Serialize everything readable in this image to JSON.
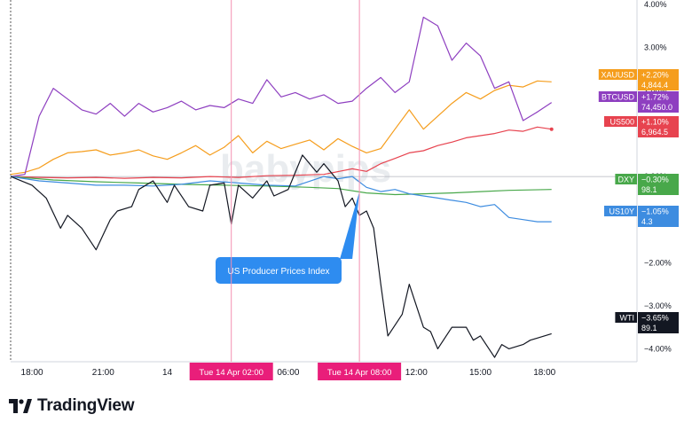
{
  "chart_data": {
    "type": "line",
    "x_ticks": [
      "18:00",
      "21:00",
      "14",
      "06:00",
      "12:00",
      "15:00",
      "18:00"
    ],
    "y_ticks": [
      "4.00%",
      "3.00%",
      "2.00%",
      "1.00%",
      "0.00%",
      "−1.00%",
      "−2.00%",
      "−3.00%",
      "−4.00%"
    ],
    "y_tick_values": [
      4,
      3,
      2,
      1,
      0,
      -1,
      -2,
      -3,
      -4
    ],
    "ylim": [
      -4.3,
      4.1
    ],
    "y_unit": "%",
    "event_markers": [
      {
        "label": "Tue 14 Apr   02:00",
        "x": 31
      },
      {
        "label": "Tue 14 Apr   08:00",
        "x": 49
      }
    ],
    "annotation": {
      "text": "US Producer Prices Index",
      "x": 49
    },
    "series": [
      {
        "name": "XAUUSD",
        "color": "#f59d1c",
        "change": "+2.20%",
        "price": "4,844.4",
        "x": [
          0,
          2,
          4,
          6,
          8,
          10,
          12,
          14,
          16,
          18,
          20,
          22,
          24,
          26,
          28,
          30,
          32,
          34,
          36,
          38,
          40,
          42,
          44,
          46,
          48,
          50,
          52,
          54,
          56,
          58,
          60,
          62,
          64,
          66,
          68,
          70,
          72,
          74,
          76
        ],
        "y": [
          0.05,
          0.1,
          0.2,
          0.4,
          0.55,
          0.58,
          0.62,
          0.5,
          0.55,
          0.62,
          0.48,
          0.4,
          0.55,
          0.72,
          0.5,
          0.68,
          0.95,
          0.55,
          0.82,
          0.65,
          0.75,
          0.85,
          0.62,
          0.88,
          0.7,
          0.55,
          0.65,
          1.1,
          1.55,
          1.1,
          1.4,
          1.7,
          1.95,
          1.8,
          2.0,
          2.12,
          2.08,
          2.22,
          2.2
        ]
      },
      {
        "name": "BTCUSD",
        "color": "#8e3fc0",
        "change": "+1.72%",
        "price": "74,450.0",
        "x": [
          0,
          2,
          4,
          6,
          8,
          10,
          12,
          14,
          16,
          18,
          20,
          22,
          24,
          26,
          28,
          30,
          32,
          34,
          36,
          38,
          40,
          42,
          44,
          46,
          48,
          50,
          52,
          54,
          56,
          58,
          60,
          62,
          64,
          66,
          68,
          70,
          72,
          74,
          76
        ],
        "y": [
          0.0,
          0.05,
          1.4,
          2.05,
          1.8,
          1.55,
          1.45,
          1.7,
          1.4,
          1.7,
          1.5,
          1.6,
          1.75,
          1.55,
          1.65,
          1.6,
          1.8,
          1.7,
          2.25,
          1.85,
          1.95,
          1.8,
          1.9,
          1.7,
          1.75,
          2.05,
          2.3,
          1.95,
          2.2,
          3.7,
          3.5,
          2.7,
          3.1,
          2.8,
          2.05,
          2.2,
          1.3,
          1.5,
          1.72
        ]
      },
      {
        "name": "US500",
        "color": "#e7434f",
        "change": "+1.10%",
        "price": "6,964.5",
        "x": [
          0,
          4,
          8,
          12,
          16,
          20,
          24,
          28,
          32,
          36,
          40,
          44,
          48,
          50,
          52,
          54,
          56,
          58,
          60,
          62,
          64,
          66,
          68,
          70,
          72,
          74,
          76
        ],
        "y": [
          0.0,
          -0.02,
          -0.03,
          -0.02,
          -0.04,
          -0.02,
          -0.03,
          0.0,
          -0.02,
          0.02,
          0.03,
          0.05,
          0.18,
          0.12,
          0.3,
          0.42,
          0.55,
          0.6,
          0.72,
          0.8,
          0.9,
          0.95,
          1.0,
          1.08,
          1.05,
          1.15,
          1.1
        ]
      },
      {
        "name": "DXY",
        "color": "#48a84a",
        "change": "−0.30%",
        "price": "98.1",
        "x": [
          0,
          6,
          12,
          18,
          24,
          30,
          36,
          42,
          46,
          50,
          54,
          58,
          62,
          66,
          70,
          76
        ],
        "y": [
          0.0,
          -0.08,
          -0.12,
          -0.15,
          -0.18,
          -0.2,
          -0.22,
          -0.25,
          -0.28,
          -0.38,
          -0.42,
          -0.4,
          -0.38,
          -0.35,
          -0.32,
          -0.3
        ]
      },
      {
        "name": "US10Y",
        "color": "#3d8ce0",
        "change": "−1.05%",
        "price": "4.3",
        "x": [
          0,
          4,
          8,
          12,
          16,
          20,
          24,
          28,
          32,
          36,
          40,
          44,
          46,
          48,
          50,
          52,
          54,
          56,
          58,
          60,
          62,
          64,
          66,
          68,
          70,
          72,
          74,
          76
        ],
        "y": [
          0.0,
          -0.1,
          -0.15,
          -0.2,
          -0.2,
          -0.22,
          -0.18,
          -0.1,
          -0.15,
          -0.2,
          -0.22,
          0.0,
          -0.05,
          0.0,
          -0.25,
          -0.35,
          -0.3,
          -0.4,
          -0.45,
          -0.5,
          -0.55,
          -0.6,
          -0.7,
          -0.65,
          -0.95,
          -1.0,
          -1.05,
          -1.05
        ]
      },
      {
        "name": "WTI",
        "color": "#131722",
        "change": "−3.65%",
        "price": "89.1",
        "x": [
          0,
          3,
          5,
          7,
          8,
          10,
          12,
          14,
          15,
          17,
          18,
          20,
          22,
          23,
          25,
          27,
          28,
          30,
          31,
          32,
          34,
          36,
          37,
          39,
          41,
          43,
          44,
          46,
          47,
          48,
          49,
          50,
          51,
          52,
          53,
          55,
          56,
          58,
          59,
          60,
          62,
          64,
          65,
          66,
          68,
          69,
          70,
          72,
          73,
          74,
          76
        ],
        "y": [
          0.0,
          -0.2,
          -0.5,
          -1.2,
          -0.9,
          -1.2,
          -1.7,
          -1.0,
          -0.8,
          -0.7,
          -0.3,
          -0.1,
          -0.6,
          -0.2,
          -0.7,
          -0.8,
          -0.2,
          -0.15,
          -1.1,
          -0.2,
          -0.5,
          -0.1,
          -0.45,
          -0.3,
          0.5,
          0.1,
          0.3,
          -0.1,
          -0.7,
          -0.5,
          -0.9,
          -0.8,
          -1.2,
          -2.5,
          -3.7,
          -3.2,
          -2.5,
          -3.5,
          -3.6,
          -4.0,
          -3.5,
          -3.5,
          -3.8,
          -3.7,
          -4.2,
          -3.9,
          -4.0,
          -3.9,
          -3.8,
          -3.75,
          -3.65
        ]
      }
    ],
    "tag_order": [
      "XAUUSD",
      "BTCUSD",
      "US500",
      "DXY",
      "US10Y",
      "WTI"
    ],
    "grid": false
  },
  "watermark": "babypips",
  "brand": "TradingView"
}
